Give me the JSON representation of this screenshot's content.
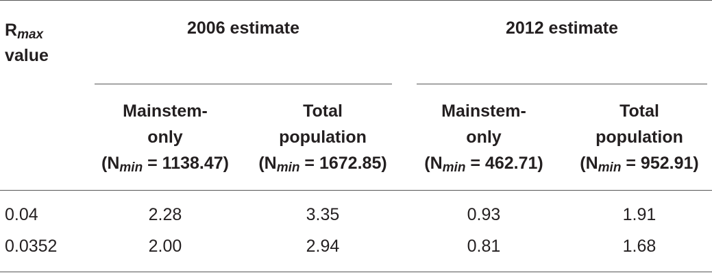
{
  "table": {
    "row_header": {
      "symbol": "R",
      "symbol_sub": "max",
      "line2": "value"
    },
    "groups": [
      {
        "title": "2006 estimate",
        "columns": [
          {
            "line1": "Mainstem-",
            "line2": "only",
            "n_prefix": "(N",
            "n_sub": "min",
            "n_value": " = 1138.47)"
          },
          {
            "line1": "Total",
            "line2": "population",
            "n_prefix": "(N",
            "n_sub": "min",
            "n_value": " = 1672.85)"
          }
        ]
      },
      {
        "title": "2012 estimate",
        "columns": [
          {
            "line1": "Mainstem-",
            "line2": "only",
            "n_prefix": "(N",
            "n_sub": "min",
            "n_value": " = 462.71)"
          },
          {
            "line1": "Total",
            "line2": "population",
            "n_prefix": "(N",
            "n_sub": "min",
            "n_value": " = 952.91)"
          }
        ]
      }
    ],
    "rows": [
      {
        "rmax": "0.04",
        "values": [
          "2.28",
          "3.35",
          "0.93",
          "1.91"
        ]
      },
      {
        "rmax": "0.0352",
        "values": [
          "2.00",
          "2.94",
          "0.81",
          "1.68"
        ]
      }
    ]
  }
}
